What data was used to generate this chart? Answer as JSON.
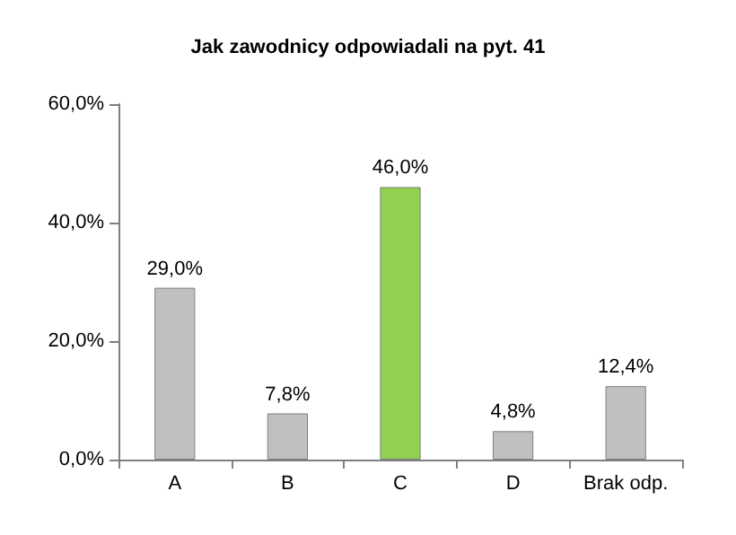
{
  "chart_data": {
    "type": "bar",
    "title": "Jak zawodnicy odpowiadali na pyt. 41",
    "categories": [
      "A",
      "B",
      "C",
      "D",
      "Brak odp."
    ],
    "values": [
      29.0,
      7.8,
      46.0,
      4.8,
      12.4
    ],
    "colors": [
      "#c0c0c0",
      "#c0c0c0",
      "#92d050",
      "#c0c0c0",
      "#c0c0c0"
    ],
    "value_labels": [
      "29,0%",
      "7,8%",
      "46,0%",
      "4,8%",
      "12,4%"
    ],
    "ylim": [
      0,
      60
    ],
    "yticks": [
      {
        "value": 0,
        "label": "0,0%"
      },
      {
        "value": 20,
        "label": "20,0%"
      },
      {
        "value": 40,
        "label": "40,0%"
      },
      {
        "value": 60,
        "label": "60,0%"
      }
    ],
    "grid": false
  }
}
